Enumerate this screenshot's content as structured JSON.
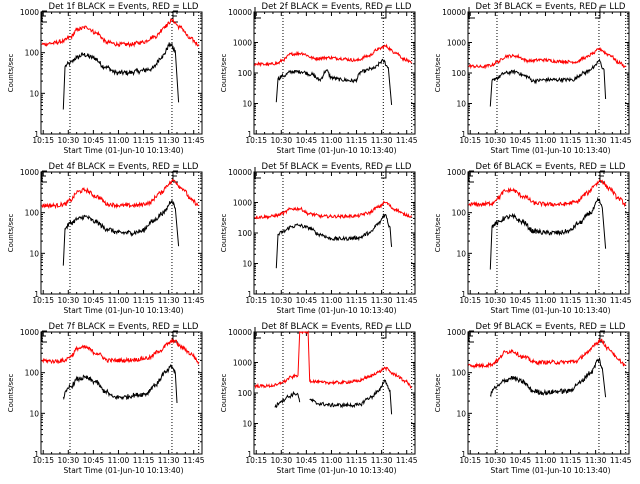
{
  "chart_data": [
    {
      "type": "line",
      "title": "Det 1f BLACK = Events, RED = LLD",
      "xlabel": "Start Time (01-Jun-10 10:13:40)",
      "ylabel": "Counts/sec",
      "yscale": "log",
      "ylim": [
        1,
        1000
      ],
      "xlim_minutes_since_start": [
        0,
        96
      ],
      "x_ticks": [
        "10:15",
        "10:30",
        "10:45",
        "11:00",
        "11:15",
        "11:30",
        "11:45"
      ],
      "y_ticks": [
        "1",
        "10",
        "100",
        "1000"
      ],
      "markers": {
        "vertical_dotted_lines": [
          "10:31",
          "11:32",
          "11:48"
        ],
        "E_labels": [
          "10:14",
          "11:32"
        ]
      },
      "series": [
        {
          "name": "Events",
          "color": "#000000",
          "x": [
            "10:27",
            "10:28",
            "10:29",
            "10:31",
            "10:35",
            "10:39",
            "10:45",
            "10:52",
            "10:59",
            "11:06",
            "11:12",
            "11:20",
            "11:26",
            "11:31",
            "11:34",
            "11:36"
          ],
          "values": [
            4,
            45,
            50,
            55,
            75,
            90,
            75,
            45,
            32,
            32,
            35,
            40,
            80,
            160,
            110,
            6
          ]
        },
        {
          "name": "LLD",
          "color": "#ff0000",
          "x": [
            "10:14",
            "10:20",
            "10:27",
            "10:31",
            "10:36",
            "10:41",
            "10:47",
            "10:53",
            "11:00",
            "11:07",
            "11:14",
            "11:22",
            "11:28",
            "11:32",
            "11:37",
            "11:43",
            "11:48"
          ],
          "values": [
            160,
            170,
            190,
            240,
            380,
            420,
            300,
            180,
            160,
            160,
            180,
            250,
            450,
            620,
            420,
            220,
            160
          ]
        }
      ]
    },
    {
      "type": "line",
      "title": "Det 2f BLACK = Events, RED = LLD",
      "xlabel": "Start Time (01-Jun-10 10:13:40)",
      "ylabel": "Counts/sec",
      "yscale": "log",
      "ylim": [
        1,
        10000
      ],
      "x_ticks": [
        "10:15",
        "10:30",
        "10:45",
        "11:00",
        "11:15",
        "11:30",
        "11:45"
      ],
      "y_ticks": [
        "1",
        "10",
        "100",
        "1000",
        "10000"
      ],
      "markers": {
        "vertical_dotted_lines": [
          "10:31",
          "11:31",
          "11:48"
        ],
        "L_labels": [
          "10:14",
          "11:32"
        ]
      },
      "series": [
        {
          "name": "Events",
          "color": "#000000",
          "x": [
            "10:27",
            "10:28",
            "10:31",
            "10:36",
            "10:42",
            "10:48",
            "10:53",
            "10:57",
            "11:00",
            "11:06",
            "11:14",
            "11:18",
            "11:25",
            "11:31",
            "11:34",
            "11:36"
          ],
          "values": [
            11,
            65,
            80,
            110,
            110,
            90,
            60,
            120,
            70,
            60,
            55,
            110,
            140,
            250,
            150,
            9
          ]
        },
        {
          "name": "LLD",
          "color": "#ff0000",
          "x": [
            "10:14",
            "10:22",
            "10:28",
            "10:31",
            "10:36",
            "10:42",
            "10:50",
            "10:58",
            "11:05",
            "11:15",
            "11:22",
            "11:28",
            "11:32",
            "11:38",
            "11:44",
            "11:48"
          ],
          "values": [
            200,
            190,
            210,
            270,
            420,
            440,
            300,
            320,
            300,
            260,
            360,
            600,
            760,
            480,
            280,
            210
          ]
        }
      ]
    },
    {
      "type": "line",
      "title": "Det 3f BLACK = Events, RED = LLD",
      "xlabel": "Start Time (01-Jun-10 10:13:40)",
      "ylabel": "Counts/sec",
      "yscale": "log",
      "ylim": [
        1,
        10000
      ],
      "x_ticks": [
        "10:15",
        "10:30",
        "10:45",
        "11:00",
        "11:15",
        "11:30",
        "11:45"
      ],
      "y_ticks": [
        "1",
        "10",
        "100",
        "1000",
        "10000"
      ],
      "markers": {
        "vertical_dotted_lines": [
          "10:31",
          "11:32",
          "11:48"
        ],
        "L_labels": [
          "10:14",
          "11:32"
        ]
      },
      "series": [
        {
          "name": "Events",
          "color": "#000000",
          "x": [
            "10:27",
            "10:28",
            "10:31",
            "10:36",
            "10:42",
            "10:48",
            "10:53",
            "11:00",
            "11:08",
            "11:16",
            "11:23",
            "11:29",
            "11:32",
            "11:35",
            "11:36"
          ],
          "values": [
            8,
            55,
            70,
            100,
            110,
            80,
            55,
            60,
            60,
            60,
            100,
            150,
            250,
            130,
            14
          ]
        },
        {
          "name": "LLD",
          "color": "#ff0000",
          "x": [
            "10:14",
            "10:22",
            "10:28",
            "10:31",
            "10:37",
            "10:42",
            "10:50",
            "10:58",
            "11:08",
            "11:18",
            "11:24",
            "11:29",
            "11:32",
            "11:38",
            "11:44",
            "11:48"
          ],
          "values": [
            170,
            160,
            180,
            230,
            360,
            360,
            250,
            270,
            240,
            230,
            320,
            450,
            620,
            400,
            220,
            160
          ]
        }
      ]
    },
    {
      "type": "line",
      "title": "Det 4f BLACK = Events, RED = LLD",
      "xlabel": "Start Time (01-Jun-10 10:13:40)",
      "ylabel": "Counts/sec",
      "yscale": "log",
      "ylim": [
        1,
        1000
      ],
      "x_ticks": [
        "10:15",
        "10:30",
        "10:45",
        "11:00",
        "11:15",
        "11:30",
        "11:45"
      ],
      "y_ticks": [
        "1",
        "10",
        "100",
        "1000"
      ],
      "markers": {
        "vertical_dotted_lines": [
          "10:31",
          "11:32",
          "11:48"
        ],
        "E_labels": [
          "10:14",
          "11:32"
        ]
      },
      "series": [
        {
          "name": "Events",
          "color": "#000000",
          "x": [
            "10:27",
            "10:28",
            "10:29",
            "10:31",
            "10:36",
            "10:40",
            "10:46",
            "10:53",
            "11:00",
            "11:08",
            "11:14",
            "11:20",
            "11:27",
            "11:32",
            "11:34",
            "11:36"
          ],
          "values": [
            5,
            40,
            45,
            55,
            70,
            80,
            60,
            40,
            32,
            32,
            35,
            60,
            100,
            200,
            130,
            15
          ]
        },
        {
          "name": "LLD",
          "color": "#ff0000",
          "x": [
            "10:14",
            "10:22",
            "10:28",
            "10:31",
            "10:36",
            "10:40",
            "10:47",
            "10:54",
            "11:02",
            "11:10",
            "11:18",
            "11:25",
            "11:30",
            "11:33",
            "11:38",
            "11:44",
            "11:48"
          ],
          "values": [
            150,
            150,
            160,
            200,
            330,
            360,
            250,
            160,
            150,
            150,
            170,
            300,
            500,
            620,
            400,
            200,
            150
          ]
        }
      ]
    },
    {
      "type": "line",
      "title": "Det 5f BLACK = Events, RED = LLD",
      "xlabel": "Start Time (01-Jun-10 10:13:40)",
      "ylabel": "Counts/sec",
      "yscale": "log",
      "ylim": [
        1,
        10000
      ],
      "x_ticks": [
        "10:15",
        "10:30",
        "10:45",
        "11:00",
        "11:15",
        "11:30",
        "11:45"
      ],
      "y_ticks": [
        "1",
        "10",
        "100",
        "1000",
        "10000"
      ],
      "markers": {
        "vertical_dotted_lines": [
          "10:31",
          "11:31",
          "11:48"
        ],
        "L_labels": [
          "10:14",
          "11:32"
        ]
      },
      "series": [
        {
          "name": "Events",
          "color": "#000000",
          "x": [
            "10:27",
            "10:28",
            "10:31",
            "10:36",
            "10:40",
            "10:46",
            "10:53",
            "11:00",
            "11:08",
            "11:16",
            "11:23",
            "11:28",
            "11:32",
            "11:35",
            "11:36"
          ],
          "values": [
            7,
            90,
            110,
            160,
            180,
            150,
            90,
            65,
            65,
            70,
            100,
            200,
            400,
            160,
            35
          ]
        },
        {
          "name": "LLD",
          "color": "#ff0000",
          "x": [
            "10:14",
            "10:22",
            "10:28",
            "10:31",
            "10:36",
            "10:41",
            "10:47",
            "10:55",
            "11:05",
            "11:15",
            "11:22",
            "11:28",
            "11:32",
            "11:38",
            "11:44",
            "11:48"
          ],
          "values": [
            330,
            340,
            380,
            450,
            620,
            620,
            420,
            350,
            350,
            360,
            450,
            700,
            1000,
            600,
            400,
            350
          ]
        }
      ]
    },
    {
      "type": "line",
      "title": "Det 6f BLACK = Events, RED = LLD",
      "xlabel": "Start Time (01-Jun-10 10:13:40)",
      "ylabel": "Counts/sec",
      "yscale": "log",
      "ylim": [
        1,
        1000
      ],
      "x_ticks": [
        "10:15",
        "10:30",
        "10:45",
        "11:00",
        "11:15",
        "11:30",
        "11:45"
      ],
      "y_ticks": [
        "1",
        "10",
        "100",
        "1000"
      ],
      "markers": {
        "vertical_dotted_lines": [
          "10:31",
          "11:32",
          "11:48"
        ],
        "E_labels": [
          "10:14",
          "11:32"
        ]
      },
      "series": [
        {
          "name": "Events",
          "color": "#000000",
          "x": [
            "10:27",
            "10:28",
            "10:29",
            "10:31",
            "10:36",
            "10:40",
            "10:46",
            "10:53",
            "11:00",
            "11:08",
            "11:14",
            "11:20",
            "11:27",
            "11:32",
            "11:34",
            "11:36"
          ],
          "values": [
            4,
            45,
            50,
            55,
            75,
            80,
            60,
            35,
            32,
            32,
            35,
            55,
            100,
            200,
            130,
            13
          ]
        },
        {
          "name": "LLD",
          "color": "#ff0000",
          "x": [
            "10:14",
            "10:22",
            "10:28",
            "10:31",
            "10:36",
            "10:40",
            "10:47",
            "10:54",
            "11:02",
            "11:10",
            "11:18",
            "11:25",
            "11:30",
            "11:33",
            "11:38",
            "11:44",
            "11:48"
          ],
          "values": [
            160,
            160,
            170,
            220,
            340,
            360,
            250,
            170,
            160,
            160,
            180,
            300,
            500,
            620,
            400,
            220,
            160
          ]
        }
      ]
    },
    {
      "type": "line",
      "title": "Det 7f BLACK = Events, RED = LLD",
      "xlabel": "Start Time (01-Jun-10 10:13:40)",
      "ylabel": "Counts/sec",
      "yscale": "log",
      "ylim": [
        1,
        1000
      ],
      "x_ticks": [
        "10:15",
        "10:30",
        "10:45",
        "11:00",
        "11:15",
        "11:30",
        "11:45"
      ],
      "y_ticks": [
        "1",
        "10",
        "100",
        "1000"
      ],
      "markers": {
        "vertical_dotted_lines": [
          "10:31",
          "11:32",
          "11:48"
        ],
        "E_labels": [
          "10:14",
          "11:32"
        ]
      },
      "series": [
        {
          "name": "Events",
          "color": "#000000",
          "x": [
            "10:27",
            "10:29",
            "10:31",
            "10:36",
            "10:40",
            "10:46",
            "10:52",
            "10:57",
            "11:03",
            "11:10",
            "11:16",
            "11:22",
            "11:28",
            "11:32",
            "11:34",
            "11:35"
          ],
          "values": [
            25,
            35,
            45,
            70,
            75,
            60,
            35,
            25,
            25,
            28,
            30,
            50,
            100,
            140,
            100,
            18
          ]
        },
        {
          "name": "LLD",
          "color": "#ff0000",
          "x": [
            "10:14",
            "10:22",
            "10:28",
            "10:31",
            "10:36",
            "10:40",
            "10:47",
            "10:54",
            "11:02",
            "11:10",
            "11:18",
            "11:25",
            "11:30",
            "11:33",
            "11:38",
            "11:44",
            "11:48"
          ],
          "values": [
            200,
            190,
            200,
            250,
            400,
            420,
            300,
            200,
            200,
            210,
            230,
            350,
            520,
            620,
            420,
            280,
            180
          ]
        }
      ]
    },
    {
      "type": "line",
      "title": "Det 8f BLACK = Events, RED = LLD",
      "xlabel": "Start Time (01-Jun-10 10:13:40)",
      "ylabel": "Counts/sec",
      "yscale": "log",
      "ylim": [
        1,
        10000
      ],
      "x_ticks": [
        "10:15",
        "10:30",
        "10:45",
        "11:00",
        "11:15",
        "11:30",
        "11:45"
      ],
      "y_ticks": [
        "1",
        "10",
        "100",
        "1000",
        "10000"
      ],
      "markers": {
        "vertical_dotted_lines": [
          "10:31",
          "11:31",
          "11:48"
        ],
        "L_labels": [
          "10:14",
          "11:32"
        ]
      },
      "series": [
        {
          "name": "Events",
          "color": "#000000",
          "x": [
            "10:26",
            "10:30",
            "10:34",
            "10:38",
            "10:40",
            "10:41",
            "10:46",
            "10:47",
            "10:52",
            "11:00",
            "11:10",
            "11:16",
            "11:23",
            "11:28",
            "11:32",
            "11:35",
            "11:36"
          ],
          "values": [
            35,
            55,
            75,
            95,
            90,
            50,
            null,
            60,
            45,
            40,
            40,
            40,
            70,
            110,
            250,
            120,
            20
          ]
        },
        {
          "name": "LLD",
          "color": "#ff0000",
          "x": [
            "10:14",
            "10:22",
            "10:27",
            "10:31",
            "10:36",
            "10:40",
            "10:41",
            "10:46",
            "10:47",
            "10:55",
            "11:05",
            "11:15",
            "11:22",
            "11:28",
            "11:32",
            "11:38",
            "11:44",
            "11:48"
          ],
          "values": [
            170,
            170,
            180,
            230,
            330,
            380,
            10000,
            10000,
            250,
            220,
            220,
            240,
            330,
            480,
            650,
            400,
            250,
            160
          ]
        }
      ]
    },
    {
      "type": "line",
      "title": "Det 9f BLACK = Events, RED = LLD",
      "xlabel": "Start Time (01-Jun-10 10:13:40)",
      "ylabel": "Counts/sec",
      "yscale": "log",
      "ylim": [
        1,
        1000
      ],
      "x_ticks": [
        "10:15",
        "10:30",
        "10:45",
        "11:00",
        "11:15",
        "11:30",
        "11:45"
      ],
      "y_ticks": [
        "1",
        "10",
        "100",
        "1000"
      ],
      "markers": {
        "vertical_dotted_lines": [
          "10:31",
          "11:32",
          "11:48"
        ],
        "E_labels": [
          "10:14",
          "11:32"
        ]
      },
      "series": [
        {
          "name": "Events",
          "color": "#000000",
          "x": [
            "10:27",
            "10:29",
            "10:31",
            "10:36",
            "10:40",
            "10:46",
            "10:53",
            "11:00",
            "11:08",
            "11:14",
            "11:20",
            "11:27",
            "11:32",
            "11:34",
            "11:36"
          ],
          "values": [
            28,
            40,
            45,
            65,
            75,
            60,
            35,
            32,
            35,
            35,
            55,
            100,
            210,
            130,
            25
          ]
        },
        {
          "name": "LLD",
          "color": "#ff0000",
          "x": [
            "10:14",
            "10:22",
            "10:28",
            "10:31",
            "10:36",
            "10:40",
            "10:47",
            "10:54",
            "11:02",
            "11:10",
            "11:18",
            "11:25",
            "11:30",
            "11:33",
            "11:38",
            "11:44",
            "11:48"
          ],
          "values": [
            150,
            150,
            160,
            200,
            320,
            340,
            240,
            180,
            180,
            180,
            190,
            300,
            520,
            620,
            380,
            200,
            150
          ]
        }
      ]
    }
  ]
}
